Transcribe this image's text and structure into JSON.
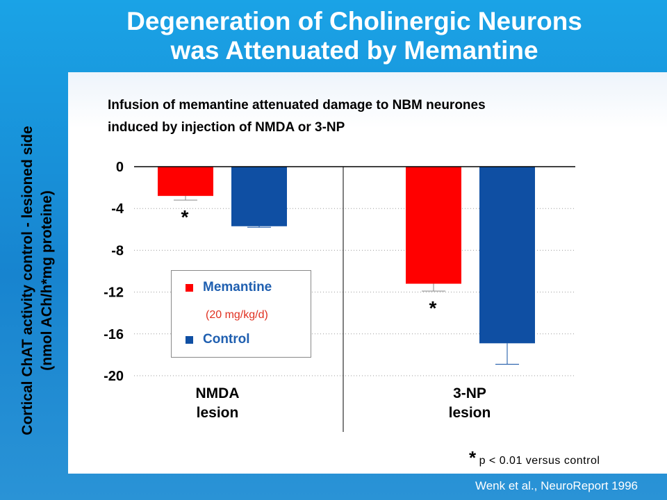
{
  "slide": {
    "title_line1": "Degeneration of Cholinergic Neurons",
    "title_line2": "was Attenuated by Memantine",
    "subtitle_line1": "Infusion of memantine attenuated damage to NBM neurones",
    "subtitle_line2": "induced by injection of NMDA or 3-NP",
    "citation": "Wenk et al., NeuroReport 1996",
    "significance_star": "*",
    "significance_text": "p < 0.01 versus control"
  },
  "colors": {
    "memantine": "#ff0000",
    "control": "#0f4fa3",
    "error": "#888888"
  },
  "chart_data": {
    "type": "bar",
    "categories": [
      "NMDA\nlesion",
      "3-NP\nlesion"
    ],
    "category_lines": [
      [
        "NMDA",
        "lesion"
      ],
      [
        "3-NP",
        "lesion"
      ]
    ],
    "series": [
      {
        "name": "Memantine",
        "note": "(20 mg/kg/d)",
        "values": [
          -2.8,
          -11.2
        ],
        "errors": [
          0.4,
          0.7
        ]
      },
      {
        "name": "Control",
        "values": [
          -5.7,
          -16.9
        ],
        "errors": [
          0.1,
          2.0
        ]
      }
    ],
    "significant": [
      [
        true,
        true
      ],
      [
        false,
        false
      ]
    ],
    "ylabel_line1": "Cortical ChAT activity control - lesioned side",
    "ylabel_line2": "(nmol ACh/h*mg proteine)",
    "yticks": [
      0,
      -4,
      -8,
      -12,
      -16,
      -20
    ],
    "ylim": [
      -20,
      0
    ],
    "grid": "dotted horizontal",
    "legend_position": "left, middle"
  }
}
